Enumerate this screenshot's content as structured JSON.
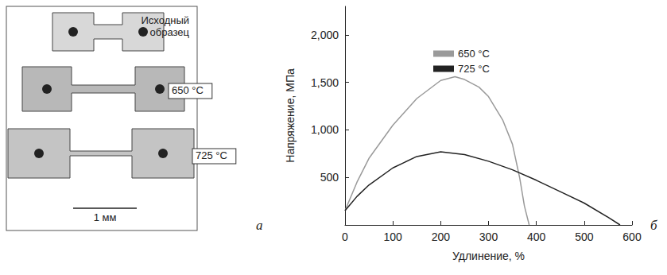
{
  "panels": {
    "a": {
      "letter": "а",
      "specimens": [
        "Исходный образец",
        "650 °C",
        "725 °C"
      ],
      "scale_bar": "1 мм"
    },
    "b": {
      "letter": "б"
    }
  },
  "chart_data": {
    "type": "line",
    "x_label": "Удлинение, %",
    "y_label": "Напряжение, МПа",
    "xlim": [
      0,
      600
    ],
    "xticks": [
      0,
      100,
      200,
      300,
      400,
      500,
      600
    ],
    "ylim": [
      0,
      2300
    ],
    "yticks": [
      500,
      1000,
      1500,
      2000
    ],
    "grid": false,
    "legend": "top",
    "series": [
      {
        "name": "650 °C",
        "color": "#9a9a9a",
        "marker": "none",
        "line_style": "solid",
        "x": [
          0,
          25,
          50,
          100,
          150,
          200,
          230,
          250,
          280,
          300,
          330,
          350,
          365,
          375,
          385
        ],
        "values": [
          150,
          450,
          700,
          1050,
          1330,
          1520,
          1560,
          1530,
          1450,
          1350,
          1100,
          850,
          500,
          200,
          0
        ]
      },
      {
        "name": "725 °C",
        "color": "#222222",
        "marker": "none",
        "line_style": "solid",
        "x": [
          0,
          25,
          50,
          100,
          150,
          200,
          250,
          300,
          350,
          400,
          450,
          500,
          550,
          575
        ],
        "values": [
          150,
          300,
          420,
          600,
          720,
          770,
          740,
          670,
          580,
          470,
          350,
          230,
          80,
          0
        ]
      }
    ]
  }
}
